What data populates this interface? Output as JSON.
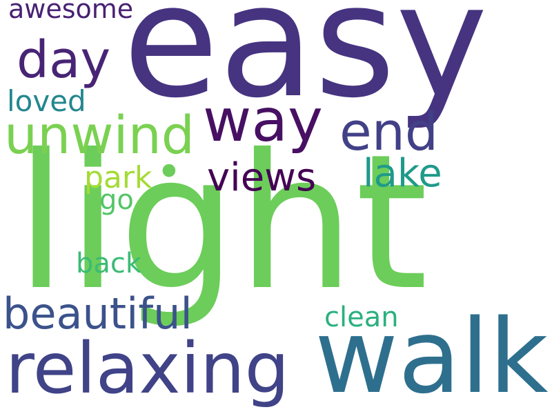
{
  "cloud": {
    "words": [
      {
        "id": "easy",
        "text": "easy",
        "color": "#463480"
      },
      {
        "id": "light",
        "text": "light",
        "color": "#6ccd5a"
      },
      {
        "id": "walk",
        "text": "walk",
        "color": "#2e6f8e"
      },
      {
        "id": "relaxing",
        "text": "relaxing",
        "color": "#404387"
      },
      {
        "id": "unwind",
        "text": "unwind",
        "color": "#7ad151"
      },
      {
        "id": "way",
        "text": "way",
        "color": "#471063"
      },
      {
        "id": "end",
        "text": "end",
        "color": "#424086"
      },
      {
        "id": "day",
        "text": "day",
        "color": "#482475"
      },
      {
        "id": "beautiful",
        "text": "beautiful",
        "color": "#3b528b"
      },
      {
        "id": "views",
        "text": "views",
        "color": "#440154"
      },
      {
        "id": "lake",
        "text": "lake",
        "color": "#1f9a8a"
      },
      {
        "id": "awesome",
        "text": "awesome",
        "color": "#482173"
      },
      {
        "id": "loved",
        "text": "loved",
        "color": "#24868e"
      },
      {
        "id": "park",
        "text": "park",
        "color": "#a5db36"
      },
      {
        "id": "go",
        "text": "go",
        "color": "#54c568"
      },
      {
        "id": "back",
        "text": "back",
        "color": "#3bbb75"
      },
      {
        "id": "clean",
        "text": "clean",
        "color": "#2ab07f"
      },
      {
        "id": "dot",
        "text": "•",
        "color": "#6ccd5a"
      }
    ]
  }
}
